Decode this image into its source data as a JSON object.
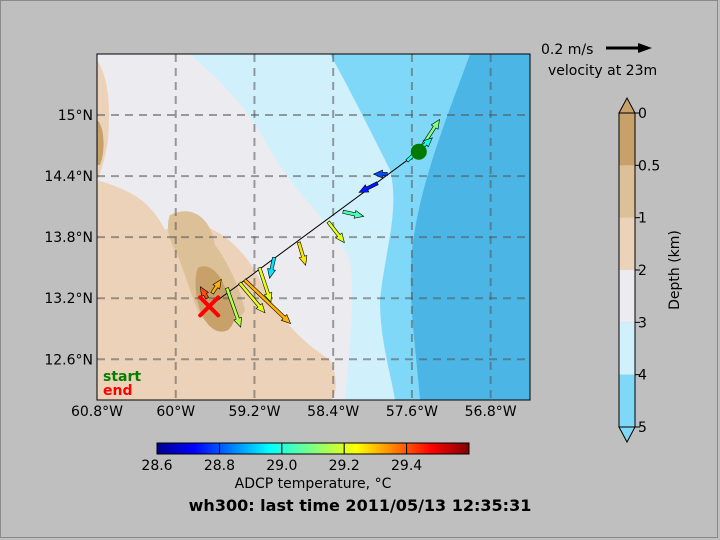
{
  "map": {
    "lat_labels": [
      {
        "text": "15°N",
        "value": 15.0
      },
      {
        "text": "14.4°N",
        "value": 14.4
      },
      {
        "text": "13.8°N",
        "value": 13.8
      },
      {
        "text": "13.2°N",
        "value": 13.2
      },
      {
        "text": "12.6°N",
        "value": 12.6
      }
    ],
    "lon_labels": [
      {
        "text": "60.8°W",
        "value": -60.8
      },
      {
        "text": "60°W",
        "value": -60.0
      },
      {
        "text": "59.2°W",
        "value": -59.2
      },
      {
        "text": "58.4°W",
        "value": -58.4
      },
      {
        "text": "57.6°W",
        "value": -57.6
      },
      {
        "text": "56.8°W",
        "value": -56.8
      }
    ],
    "lat_range": [
      12.2,
      15.6
    ],
    "lon_range": [
      -60.8,
      -56.4
    ],
    "start_label": "start",
    "end_label": "end",
    "start_color": "#008000",
    "end_color": "#ff0000",
    "track_start": {
      "lon": -57.53,
      "lat": 14.64
    },
    "track_end": {
      "lon": -59.66,
      "lat": 13.12
    }
  },
  "scale": {
    "speed_label": "0.2 m/s",
    "velocity_label": "velocity at 23m"
  },
  "depth_colorbar": {
    "label": "Depth (km)",
    "ticks": [
      "0",
      "0.5",
      "1",
      "2",
      "3",
      "4",
      "5"
    ],
    "colors": [
      "#c8a06a",
      "#dcc098",
      "#ecd2b8",
      "#ececf0",
      "#d0f0fc",
      "#80d8f8"
    ]
  },
  "temp_colorbar": {
    "label": "ADCP temperature, °C",
    "ticks": [
      "28.6",
      "28.8",
      "29.0",
      "29.2",
      "29.4"
    ],
    "range": [
      28.6,
      29.6
    ]
  },
  "title": "wh300: last time 2011/05/13 12:35:31",
  "vectors": [
    {
      "lon": -57.53,
      "lat": 14.64,
      "u": 0.09,
      "v": 0.14,
      "temp": 29.1
    },
    {
      "lon": -57.65,
      "lat": 14.55,
      "u": 0.11,
      "v": 0.1,
      "temp": 29.0
    },
    {
      "lon": -57.85,
      "lat": 14.42,
      "u": -0.06,
      "v": 0.0,
      "temp": 28.8
    },
    {
      "lon": -57.95,
      "lat": 14.33,
      "u": -0.08,
      "v": -0.04,
      "temp": 28.75
    },
    {
      "lon": -58.3,
      "lat": 14.05,
      "u": 0.09,
      "v": -0.02,
      "temp": 29.05
    },
    {
      "lon": -58.45,
      "lat": 13.95,
      "u": 0.07,
      "v": -0.09,
      "temp": 29.2
    },
    {
      "lon": -58.75,
      "lat": 13.75,
      "u": 0.03,
      "v": -0.1,
      "temp": 29.25
    },
    {
      "lon": -59.0,
      "lat": 13.6,
      "u": -0.02,
      "v": -0.09,
      "temp": 28.95
    },
    {
      "lon": -59.15,
      "lat": 13.5,
      "u": 0.05,
      "v": -0.15,
      "temp": 29.2
    },
    {
      "lon": -59.3,
      "lat": 13.38,
      "u": 0.2,
      "v": -0.19,
      "temp": 29.3
    },
    {
      "lon": -59.35,
      "lat": 13.35,
      "u": 0.11,
      "v": -0.13,
      "temp": 29.2
    },
    {
      "lon": -59.48,
      "lat": 13.3,
      "u": 0.06,
      "v": -0.17,
      "temp": 29.15
    },
    {
      "lon": -59.63,
      "lat": 13.25,
      "u": 0.04,
      "v": 0.06,
      "temp": 29.3
    },
    {
      "lon": -59.68,
      "lat": 13.2,
      "u": -0.03,
      "v": 0.05,
      "temp": 29.4
    }
  ]
}
